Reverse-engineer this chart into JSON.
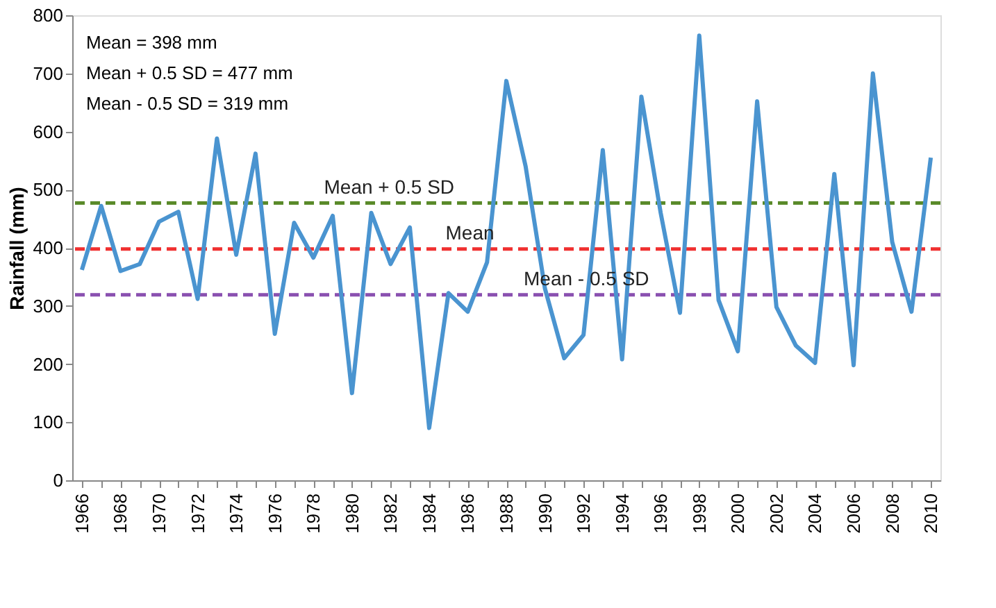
{
  "chart_data": {
    "type": "line",
    "ylabel": "Rainfall (mm)",
    "categories": [
      "1966",
      null,
      "1968",
      null,
      "1970",
      null,
      "1972",
      null,
      "1974",
      null,
      "1976",
      null,
      "1978",
      null,
      "1980",
      null,
      "1982",
      null,
      "1984",
      null,
      "1986",
      null,
      "1988",
      null,
      "1990",
      null,
      "1992",
      null,
      "1994",
      null,
      "1996",
      null,
      "1998",
      null,
      "2000",
      null,
      "2002",
      null,
      "2004",
      null,
      "2006",
      null,
      "2008",
      null,
      "2010"
    ],
    "series": [
      {
        "color": "#4a94d0",
        "values": [
          362,
          472,
          360,
          372,
          445,
          462,
          312,
          588,
          388,
          562,
          252,
          443,
          383,
          455,
          150,
          460,
          372,
          435,
          90,
          322,
          290,
          375,
          687,
          540,
          330,
          210,
          250,
          568,
          208,
          660,
          460,
          288,
          765,
          310,
          222,
          652,
          298,
          232,
          202,
          527,
          198,
          700,
          410,
          290,
          555
        ]
      }
    ],
    "ylim": [
      0,
      800
    ],
    "yticks": [
      0,
      100,
      200,
      300,
      400,
      500,
      600,
      700,
      800
    ],
    "ref_lines": [
      {
        "axis": "y",
        "value": 477,
        "label": "Mean + 0.5 SD",
        "color": "#5a8a2a",
        "line_style": "dashed"
      },
      {
        "axis": "y",
        "value": 398,
        "label": "Mean",
        "color": "#f03030",
        "line_style": "dashed"
      },
      {
        "axis": "y",
        "value": 319,
        "label": "Mean - 0.5 SD",
        "color": "#8a50b0",
        "line_style": "dashed"
      }
    ],
    "annotations": [
      "Mean = 398 mm",
      "Mean + 0.5 SD = 477 mm",
      "Mean - 0.5 SD = 319 mm"
    ],
    "grid": false,
    "marker": "none",
    "line_style": "solid"
  }
}
